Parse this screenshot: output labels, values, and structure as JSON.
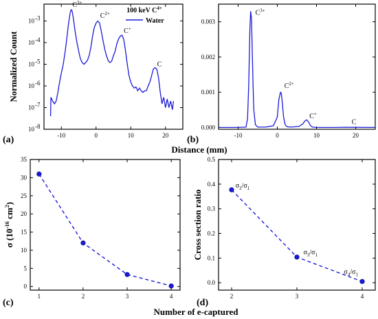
{
  "shared": {
    "xlabel_top": "Distance (mm)",
    "xlabel_bottom": "Number of e-captured",
    "color": "#1a1ad6"
  },
  "chart_data": [
    {
      "panel": "(a)",
      "type": "line",
      "ylabel": "Normalized Count",
      "yscale": "log",
      "xlim": [
        -15,
        25
      ],
      "ylim": [
        1e-08,
        0.006
      ],
      "xticks": [
        -10,
        0,
        10,
        20
      ],
      "yticks": [
        1e-08,
        1e-07,
        1e-06,
        1e-05,
        0.0001,
        0.001
      ],
      "ytick_labels": [
        "10",
        "10",
        "10",
        "10",
        "10",
        "10"
      ],
      "ytick_exps": [
        "-8",
        "-7",
        "-6",
        "-5",
        "-4",
        "-3"
      ],
      "legend": {
        "title": "100 keV C",
        "title_sup": "4+",
        "entry": "Water",
        "position": "top-right"
      },
      "series": [
        {
          "name": "Water",
          "x": [
            -13.1,
            -13.0,
            -12.5,
            -12.0,
            -11.5,
            -11.0,
            -10.5,
            -10.0,
            -9.5,
            -9.0,
            -8.5,
            -8.0,
            -7.5,
            -7.2,
            -7.0,
            -6.8,
            -6.5,
            -6.0,
            -5.5,
            -5.0,
            -4.5,
            -4.0,
            -3.5,
            -3.0,
            -2.5,
            -2.0,
            -1.5,
            -1.0,
            -0.5,
            0.0,
            0.5,
            1.0,
            1.5,
            2.0,
            2.5,
            3.0,
            3.5,
            4.0,
            4.5,
            5.0,
            5.5,
            6.0,
            6.5,
            7.0,
            7.5,
            8.0,
            8.5,
            9.0,
            9.5,
            10.0,
            10.5,
            11.0,
            11.5,
            12.0,
            12.5,
            13.0,
            13.5,
            14.0,
            14.5,
            15.0,
            15.5,
            16.0,
            16.5,
            17.0,
            17.5,
            18.0,
            18.5,
            19.0,
            19.5,
            20.0,
            20.5,
            21.0,
            21.5,
            22.0,
            22.3
          ],
          "y": [
            4e-08,
            3e-07,
            2e-07,
            1.5e-07,
            2e-07,
            5e-07,
            1.5e-06,
            4e-06,
            9e-06,
            3e-05,
            0.00012,
            0.0006,
            0.0022,
            0.0033,
            0.0032,
            0.0024,
            0.0012,
            0.0003,
            0.0001,
            4e-05,
            1.8e-05,
            1.2e-05,
            1e-05,
            1.2e-05,
            1.5e-05,
            2.5e-05,
            6e-05,
            0.0002,
            0.0005,
            0.0008,
            0.001,
            0.0008,
            0.00035,
            0.00013,
            5e-05,
            2.5e-05,
            1.5e-05,
            1.2e-05,
            1.4e-05,
            2.5e-05,
            4e-05,
            9e-05,
            0.00015,
            0.0002,
            0.00022,
            0.00014,
            4e-05,
            1e-05,
            3e-06,
            1.5e-06,
            1e-06,
            8e-07,
            9e-07,
            6e-07,
            8e-07,
            6e-07,
            5e-07,
            6e-07,
            6e-07,
            1e-06,
            1.5e-06,
            3e-06,
            6e-06,
            7e-06,
            6e-06,
            2.5e-06,
            5e-07,
            1.5e-07,
            3e-07,
            1e-07,
            2.5e-07,
            1e-07,
            2e-07,
            8e-08,
            2e-07
          ]
        }
      ],
      "annotations": [
        {
          "text": "C",
          "sup": "3+",
          "x": -6.8,
          "y": 0.0045
        },
        {
          "text": "C",
          "sup": "2+",
          "x": 1.2,
          "y": 0.0014
        },
        {
          "text": "C",
          "sup": "+",
          "x": 8.0,
          "y": 0.00028
        },
        {
          "text": "C",
          "sup": "",
          "x": 17.6,
          "y": 8e-06
        }
      ]
    },
    {
      "panel": "(b)",
      "type": "line",
      "ylabel": "",
      "xlim": [
        -15,
        25
      ],
      "ylim": [
        -5e-05,
        0.0035
      ],
      "xticks": [
        -10,
        0,
        10,
        20
      ],
      "yticks": [
        0.0,
        0.001,
        0.002,
        0.003
      ],
      "ytick_labels": [
        "0.000",
        "0.001",
        "0.002",
        "0.003"
      ],
      "series": [
        {
          "name": "Water",
          "x": [
            -15.0,
            -10.0,
            -8.0,
            -7.6,
            -7.3,
            -7.0,
            -6.8,
            -6.6,
            -6.4,
            -6.2,
            -6.0,
            -5.6,
            -5.0,
            -3.0,
            -1.0,
            0.0,
            0.4,
            0.8,
            1.0,
            1.2,
            1.6,
            2.0,
            2.5,
            3.5,
            5.5,
            6.5,
            7.0,
            7.5,
            8.0,
            8.5,
            9.0,
            10.0,
            15.0,
            17.0,
            18.0,
            25.0
          ],
          "y": [
            0.0,
            0.0,
            1e-05,
            0.00025,
            0.0012,
            0.0028,
            0.0033,
            0.0031,
            0.0022,
            0.0012,
            0.0005,
            8e-05,
            1e-05,
            1e-05,
            5e-05,
            0.0003,
            0.0008,
            0.001,
            0.00098,
            0.0008,
            0.0003,
            8e-05,
            2e-05,
            1e-05,
            3e-05,
            0.0001,
            0.00018,
            0.00022,
            0.00015,
            5e-05,
            1e-05,
            0.0,
            0.0,
            7e-06,
            5e-06,
            0.0
          ]
        }
      ],
      "annotations": [
        {
          "text": "C",
          "sup": "3+",
          "x": -5.6,
          "y": 0.0032
        },
        {
          "text": "C",
          "sup": "2+",
          "x": 1.8,
          "y": 0.00112
        },
        {
          "text": "C",
          "sup": "+",
          "x": 8.2,
          "y": 0.00026
        },
        {
          "text": "C",
          "sup": "",
          "x": 19.0,
          "y": 0.0001
        }
      ]
    },
    {
      "panel": "(c)",
      "type": "scatter",
      "ylabel": "σ (10",
      "ylabel_sup1": "-16",
      "ylabel_mid": " cm",
      "ylabel_sup2": "2",
      "ylabel_end": ")",
      "xlim": [
        0.8,
        4.2
      ],
      "ylim": [
        -1,
        35
      ],
      "xticks": [
        1,
        2,
        3,
        4
      ],
      "yticks": [
        0,
        5,
        10,
        15,
        20,
        25,
        30,
        35
      ],
      "series": [
        {
          "x": [
            1,
            2,
            3,
            4
          ],
          "y": [
            31.0,
            12.0,
            3.3,
            0.15
          ],
          "line": "dashed"
        }
      ]
    },
    {
      "panel": "(d)",
      "type": "scatter",
      "ylabel": "Cross section ratio",
      "xlim": [
        1.8,
        4.2
      ],
      "ylim": [
        -0.03,
        0.5
      ],
      "xticks": [
        2,
        3,
        4
      ],
      "yticks": [
        0.0,
        0.1,
        0.2,
        0.3,
        0.4,
        0.5
      ],
      "ytick_labels": [
        "0.0",
        "0.1",
        "0.2",
        "0.3",
        "0.4",
        "0.5"
      ],
      "series": [
        {
          "x": [
            2,
            3,
            4
          ],
          "y": [
            0.377,
            0.104,
            0.005
          ],
          "line": "dashed"
        }
      ],
      "annotations": [
        {
          "text": "σ",
          "sub": "2",
          "tail": "/σ",
          "sub2": "1",
          "x": 2.06,
          "y": 0.385
        },
        {
          "text": "σ",
          "sub": "3",
          "tail": "/σ",
          "sub2": "1",
          "x": 3.1,
          "y": 0.115
        },
        {
          "text": "σ",
          "sub": "4",
          "tail": "/σ",
          "sub2": "1",
          "x": 3.72,
          "y": 0.035
        }
      ]
    }
  ]
}
